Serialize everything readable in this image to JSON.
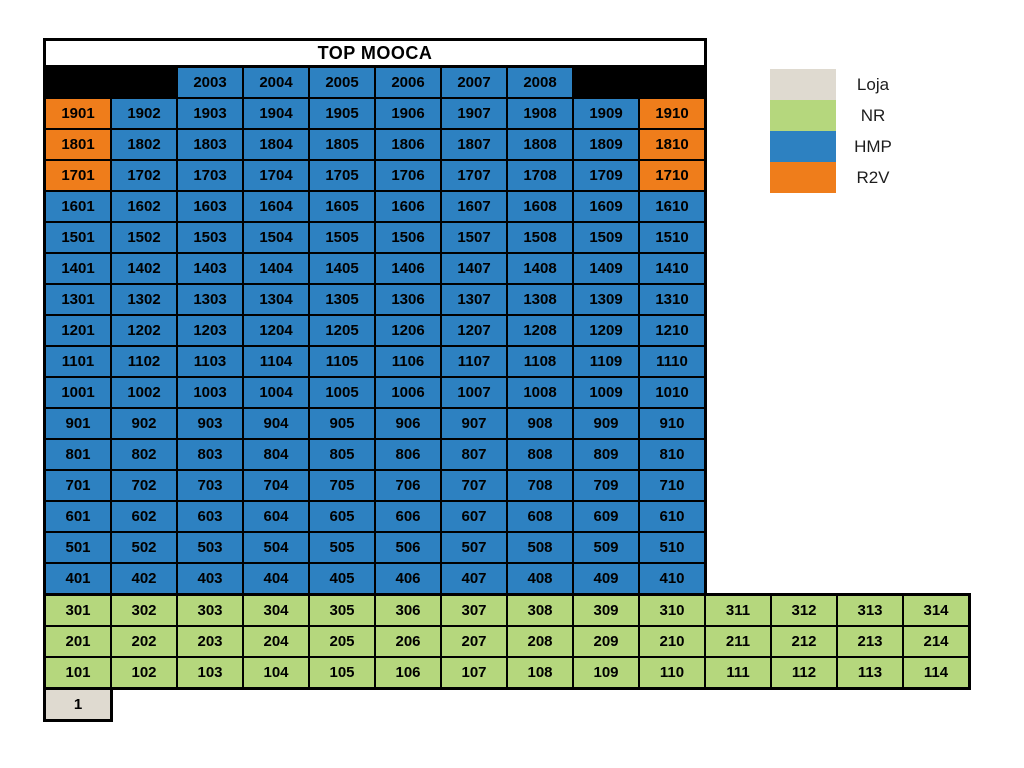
{
  "chart_data": {
    "type": "heatmap",
    "title": "TOP MOOCA",
    "legend_position": "right",
    "status_colors": {
      "loja": "#DFDAD0",
      "nr": "#B5D77D",
      "hmp": "#2D81C1",
      "r2v": "#EF7D1B"
    },
    "legend": [
      {
        "label": "Loja",
        "status": "loja"
      },
      {
        "label": "NR",
        "status": "nr"
      },
      {
        "label": "HMP",
        "status": "hmp"
      },
      {
        "label": "R2V",
        "status": "r2v"
      }
    ],
    "year_row": {
      "leading_blanks": 2,
      "years": [
        "2003",
        "2004",
        "2005",
        "2006",
        "2007",
        "2008"
      ],
      "trailing_blanks": 2,
      "status": "hmp"
    },
    "tower_rows": [
      {
        "status": "hmp",
        "overrides": {
          "0": "r2v",
          "9": "r2v"
        },
        "labels": [
          "1901",
          "1902",
          "1903",
          "1904",
          "1905",
          "1906",
          "1907",
          "1908",
          "1909",
          "1910"
        ]
      },
      {
        "status": "hmp",
        "overrides": {
          "0": "r2v",
          "9": "r2v"
        },
        "labels": [
          "1801",
          "1802",
          "1803",
          "1804",
          "1805",
          "1806",
          "1807",
          "1808",
          "1809",
          "1810"
        ]
      },
      {
        "status": "hmp",
        "overrides": {
          "0": "r2v",
          "9": "r2v"
        },
        "labels": [
          "1701",
          "1702",
          "1703",
          "1704",
          "1705",
          "1706",
          "1707",
          "1708",
          "1709",
          "1710"
        ]
      },
      {
        "status": "hmp",
        "labels": [
          "1601",
          "1602",
          "1603",
          "1604",
          "1605",
          "1606",
          "1607",
          "1608",
          "1609",
          "1610"
        ]
      },
      {
        "status": "hmp",
        "labels": [
          "1501",
          "1502",
          "1503",
          "1504",
          "1505",
          "1506",
          "1507",
          "1508",
          "1509",
          "1510"
        ]
      },
      {
        "status": "hmp",
        "labels": [
          "1401",
          "1402",
          "1403",
          "1404",
          "1405",
          "1406",
          "1407",
          "1408",
          "1409",
          "1410"
        ]
      },
      {
        "status": "hmp",
        "labels": [
          "1301",
          "1302",
          "1303",
          "1304",
          "1305",
          "1306",
          "1307",
          "1308",
          "1309",
          "1310"
        ]
      },
      {
        "status": "hmp",
        "labels": [
          "1201",
          "1202",
          "1203",
          "1204",
          "1205",
          "1206",
          "1207",
          "1208",
          "1209",
          "1210"
        ]
      },
      {
        "status": "hmp",
        "labels": [
          "1101",
          "1102",
          "1103",
          "1104",
          "1105",
          "1106",
          "1107",
          "1108",
          "1109",
          "1110"
        ]
      },
      {
        "status": "hmp",
        "labels": [
          "1001",
          "1002",
          "1003",
          "1004",
          "1005",
          "1006",
          "1007",
          "1008",
          "1009",
          "1010"
        ]
      },
      {
        "status": "hmp",
        "labels": [
          "901",
          "902",
          "903",
          "904",
          "905",
          "906",
          "907",
          "908",
          "909",
          "910"
        ]
      },
      {
        "status": "hmp",
        "labels": [
          "801",
          "802",
          "803",
          "804",
          "805",
          "806",
          "807",
          "808",
          "809",
          "810"
        ]
      },
      {
        "status": "hmp",
        "labels": [
          "701",
          "702",
          "703",
          "704",
          "705",
          "706",
          "707",
          "708",
          "709",
          "710"
        ]
      },
      {
        "status": "hmp",
        "labels": [
          "601",
          "602",
          "603",
          "604",
          "605",
          "606",
          "607",
          "608",
          "609",
          "610"
        ]
      },
      {
        "status": "hmp",
        "labels": [
          "501",
          "502",
          "503",
          "504",
          "505",
          "506",
          "507",
          "508",
          "509",
          "510"
        ]
      },
      {
        "status": "hmp",
        "labels": [
          "401",
          "402",
          "403",
          "404",
          "405",
          "406",
          "407",
          "408",
          "409",
          "410"
        ]
      }
    ],
    "base_rows": [
      {
        "status": "nr",
        "labels": [
          "301",
          "302",
          "303",
          "304",
          "305",
          "306",
          "307",
          "308",
          "309",
          "310",
          "311",
          "312",
          "313",
          "314"
        ]
      },
      {
        "status": "nr",
        "labels": [
          "201",
          "202",
          "203",
          "204",
          "205",
          "206",
          "207",
          "208",
          "209",
          "210",
          "211",
          "212",
          "213",
          "214"
        ]
      },
      {
        "status": "nr",
        "labels": [
          "101",
          "102",
          "103",
          "104",
          "105",
          "106",
          "107",
          "108",
          "109",
          "110",
          "111",
          "112",
          "113",
          "114"
        ]
      }
    ],
    "ground_cell": {
      "label": "1",
      "status": "loja"
    }
  }
}
